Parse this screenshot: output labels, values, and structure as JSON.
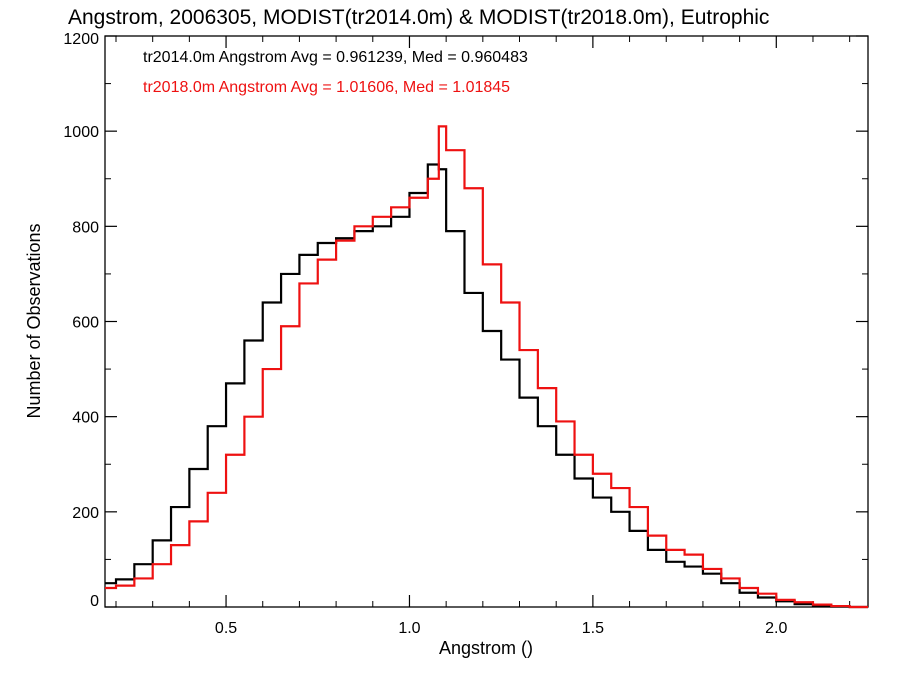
{
  "chart_data": {
    "type": "line",
    "title": "Angstrom, 2006305, MODIST(tr2014.0m) & MODIST(tr2018.0m), Eutrophic",
    "xlabel": "Angstrom ()",
    "ylabel": "Number of Observations",
    "xlim": [
      0.17,
      2.25
    ],
    "ylim": [
      0,
      1200
    ],
    "xticks": [
      {
        "value": 0.5,
        "label": "0.5"
      },
      {
        "value": 1.0,
        "label": "1.0"
      },
      {
        "value": 1.5,
        "label": "1.5"
      },
      {
        "value": 2.0,
        "label": "2.0"
      }
    ],
    "yticks": [
      {
        "value": 0,
        "label": "0"
      },
      {
        "value": 200,
        "label": "200"
      },
      {
        "value": 400,
        "label": "400"
      },
      {
        "value": 600,
        "label": "600"
      },
      {
        "value": 800,
        "label": "800"
      },
      {
        "value": 1000,
        "label": "1000"
      },
      {
        "value": 1200,
        "label": "1200"
      }
    ],
    "grid": false,
    "step": true,
    "annotations": [
      {
        "text": "tr2014.0m Angstrom Avg = 0.961239, Med = 0.960483",
        "color": "#000000"
      },
      {
        "text": "tr2018.0m Angstrom Avg = 1.01606, Med = 1.01845",
        "color": "#ee1111"
      }
    ],
    "x": [
      0.17,
      0.2,
      0.25,
      0.3,
      0.35,
      0.4,
      0.45,
      0.5,
      0.55,
      0.6,
      0.65,
      0.7,
      0.75,
      0.8,
      0.85,
      0.9,
      0.95,
      1.0,
      1.05,
      1.08,
      1.1,
      1.15,
      1.2,
      1.25,
      1.3,
      1.35,
      1.4,
      1.45,
      1.5,
      1.55,
      1.6,
      1.65,
      1.7,
      1.75,
      1.8,
      1.85,
      1.9,
      1.95,
      2.0,
      2.05,
      2.1,
      2.15,
      2.2,
      2.25
    ],
    "series": [
      {
        "color": "#000000",
        "values": [
          50,
          58,
          90,
          140,
          210,
          290,
          380,
          470,
          560,
          640,
          700,
          740,
          765,
          775,
          790,
          800,
          820,
          870,
          930,
          920,
          790,
          660,
          580,
          520,
          440,
          380,
          320,
          270,
          230,
          200,
          160,
          120,
          95,
          85,
          70,
          50,
          30,
          20,
          12,
          6,
          3,
          1,
          0,
          0
        ]
      },
      {
        "color": "#ee1111",
        "values": [
          40,
          45,
          60,
          90,
          130,
          180,
          240,
          320,
          400,
          500,
          590,
          680,
          730,
          770,
          800,
          820,
          840,
          860,
          900,
          1010,
          960,
          880,
          720,
          640,
          540,
          460,
          390,
          320,
          280,
          250,
          210,
          150,
          120,
          110,
          80,
          60,
          40,
          28,
          15,
          10,
          5,
          2,
          0,
          0
        ]
      }
    ]
  }
}
